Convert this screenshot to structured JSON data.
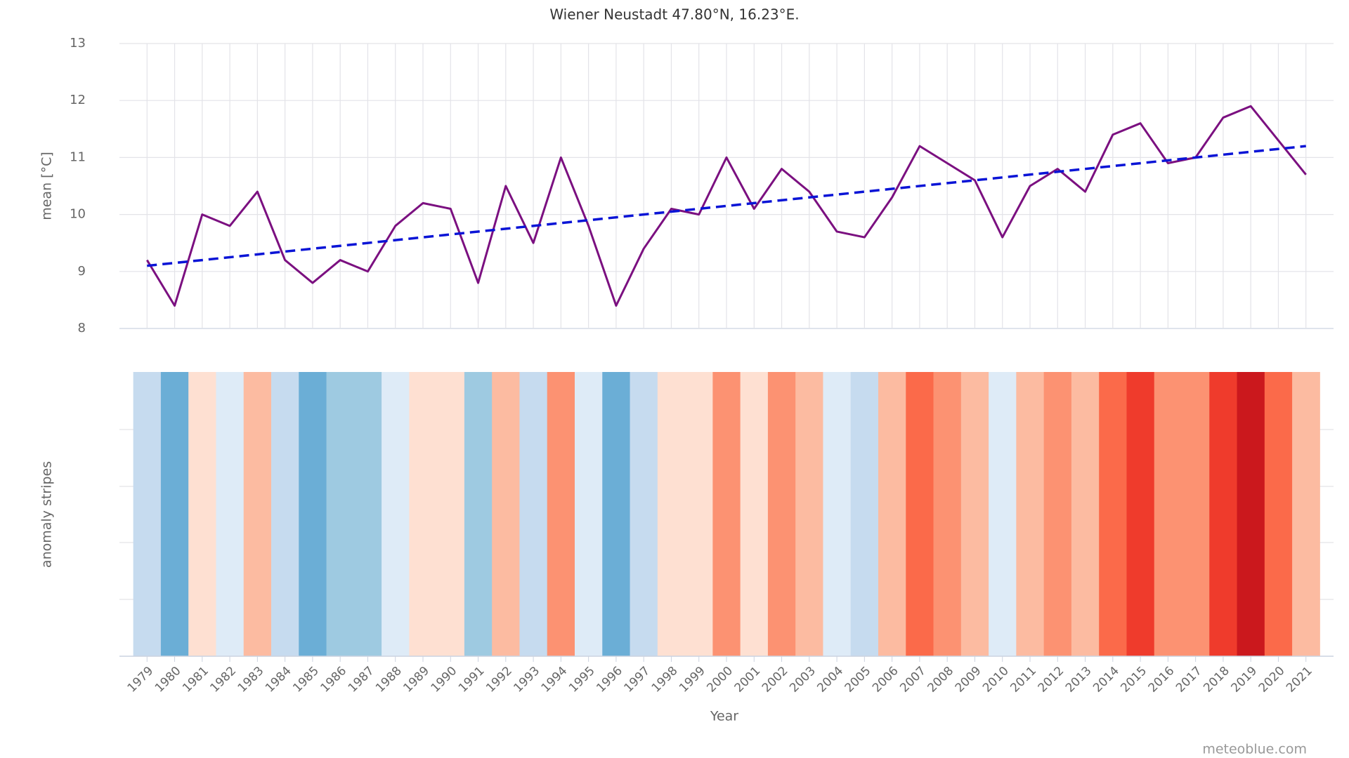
{
  "chart_data": {
    "type": "line",
    "title": "Wiener Neustadt 47.80°N, 16.23°E.",
    "x_label": "Year",
    "y_label": "mean [°C]",
    "stripes_label": "anomaly stripes",
    "credit": "meteoblue.com",
    "x": [
      1979,
      1980,
      1981,
      1982,
      1983,
      1984,
      1985,
      1986,
      1987,
      1988,
      1989,
      1990,
      1991,
      1992,
      1993,
      1994,
      1995,
      1996,
      1997,
      1998,
      1999,
      2000,
      2001,
      2002,
      2003,
      2004,
      2005,
      2006,
      2007,
      2008,
      2009,
      2010,
      2011,
      2012,
      2013,
      2014,
      2015,
      2016,
      2017,
      2018,
      2019,
      2020,
      2021
    ],
    "series": [
      {
        "color": "#7b1080",
        "values": [
          9.2,
          8.4,
          10.0,
          9.8,
          10.4,
          9.2,
          8.8,
          9.2,
          9.0,
          9.8,
          10.2,
          10.1,
          8.8,
          10.5,
          9.5,
          11.0,
          9.8,
          8.4,
          9.4,
          10.1,
          10.0,
          11.0,
          10.1,
          10.8,
          10.4,
          9.7,
          9.6,
          10.3,
          11.2,
          10.9,
          10.6,
          9.6,
          10.5,
          10.8,
          10.4,
          11.4,
          11.6,
          10.9,
          11.0,
          11.7,
          11.9,
          11.3,
          10.7
        ]
      },
      {
        "color": "#0a14d6",
        "dashed": true,
        "x": [
          1979,
          2021
        ],
        "values": [
          9.1,
          11.2
        ]
      }
    ],
    "stripe_colors": [
      "#c6dbef",
      "#6baed6",
      "#fee0d2",
      "#deebf7",
      "#fcbba1",
      "#c6dbef",
      "#6baed6",
      "#9ecae1",
      "#9ecae1",
      "#deebf7",
      "#fee0d2",
      "#fee0d2",
      "#9ecae1",
      "#fcbba1",
      "#c6dbef",
      "#fc9272",
      "#deebf7",
      "#6baed6",
      "#c6dbef",
      "#fee0d2",
      "#fee0d2",
      "#fc9272",
      "#fee0d2",
      "#fc9272",
      "#fcbba1",
      "#deebf7",
      "#c6dbef",
      "#fcbba1",
      "#fb6a4a",
      "#fc9272",
      "#fcbba1",
      "#deebf7",
      "#fcbba1",
      "#fc9272",
      "#fcbba1",
      "#fb6a4a",
      "#ef3b2c",
      "#fc9272",
      "#fc9272",
      "#ef3b2c",
      "#cb181d",
      "#fb6a4a",
      "#fcbba1"
    ],
    "xlim": [
      1978,
      2022
    ],
    "ylim": [
      8,
      13
    ],
    "yticks": [
      8,
      9,
      10,
      11,
      12,
      13
    ],
    "grid": true
  }
}
